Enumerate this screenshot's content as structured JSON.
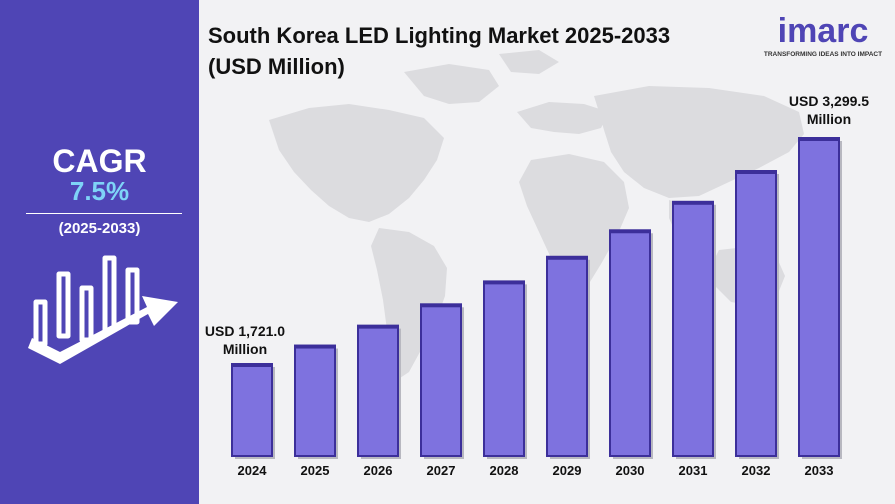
{
  "left_panel": {
    "cagr_label": "CAGR",
    "cagr_value": "7.5%",
    "cagr_period": "(2025-2033)",
    "icon": "growth-chart-arrow-icon"
  },
  "header": {
    "title": "South Korea LED Lighting Market 2025-2033 (USD Million)"
  },
  "logo": {
    "name": "imarc",
    "tagline": "TRANSFORMING IDEAS INTO IMPACT"
  },
  "annotations": {
    "first_line1": "USD 1,721.0",
    "first_line2": "Million",
    "last_line1": "USD 3,299.5",
    "last_line2": "Million"
  },
  "colors": {
    "panel": "#4f45b5",
    "bar": "#7e72df",
    "bar_dark": "#3c2f9a",
    "accent": "#7ed3f7",
    "map": "#dcdcdf"
  },
  "chart_data": {
    "type": "bar",
    "categories": [
      "2024",
      "2025",
      "2026",
      "2027",
      "2028",
      "2029",
      "2030",
      "2031",
      "2032",
      "2033"
    ],
    "values": [
      1721.0,
      1850,
      1989,
      2138,
      2298,
      2470,
      2655,
      2854,
      3069,
      3299.5
    ],
    "title": "South Korea LED Lighting Market 2025-2033 (USD Million)",
    "xlabel": "",
    "ylabel": "",
    "ylim": [
      0,
      3400
    ],
    "grid": false,
    "legend": "none"
  }
}
